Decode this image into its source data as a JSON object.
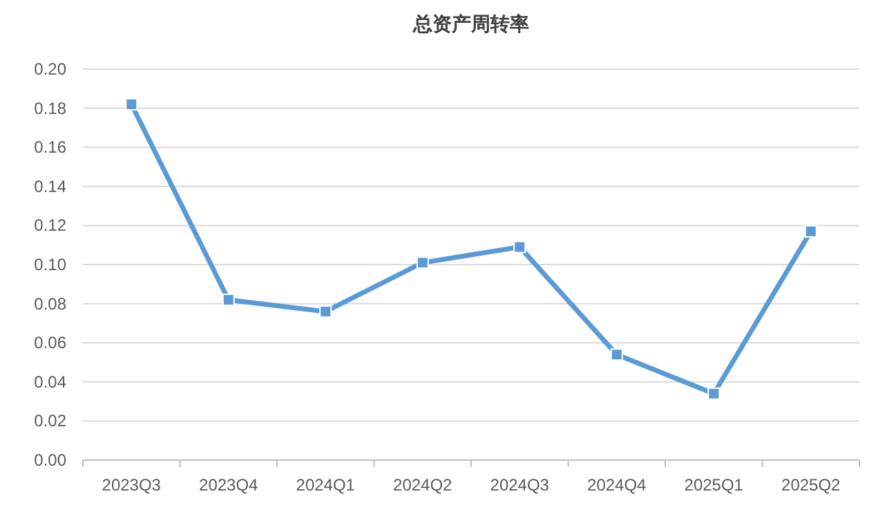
{
  "chart_data": {
    "type": "line",
    "title": "总资产周转率",
    "categories": [
      "2023Q3",
      "2023Q4",
      "2024Q1",
      "2024Q2",
      "2024Q3",
      "2024Q4",
      "2025Q1",
      "2025Q2"
    ],
    "series": [
      {
        "color": "#5b9bd5",
        "values": [
          0.182,
          0.082,
          0.076,
          0.101,
          0.109,
          0.054,
          0.034,
          0.117
        ]
      }
    ],
    "ylim": [
      0,
      0.2
    ],
    "yticks": [
      {
        "value": 0,
        "label": "0.00"
      },
      {
        "value": 0.02,
        "label": "0.02"
      },
      {
        "value": 0.04,
        "label": "0.04"
      },
      {
        "value": 0.06,
        "label": "0.06"
      },
      {
        "value": 0.08,
        "label": "0.08"
      },
      {
        "value": 0.1,
        "label": "0.10"
      },
      {
        "value": 0.12,
        "label": "0.12"
      },
      {
        "value": 0.14,
        "label": "0.14"
      },
      {
        "value": 0.16,
        "label": "0.16"
      },
      {
        "value": 0.18,
        "label": "0.18"
      },
      {
        "value": 0.2,
        "label": "0.20"
      }
    ],
    "grid": "y",
    "marker": "square",
    "line_style": "solid"
  }
}
